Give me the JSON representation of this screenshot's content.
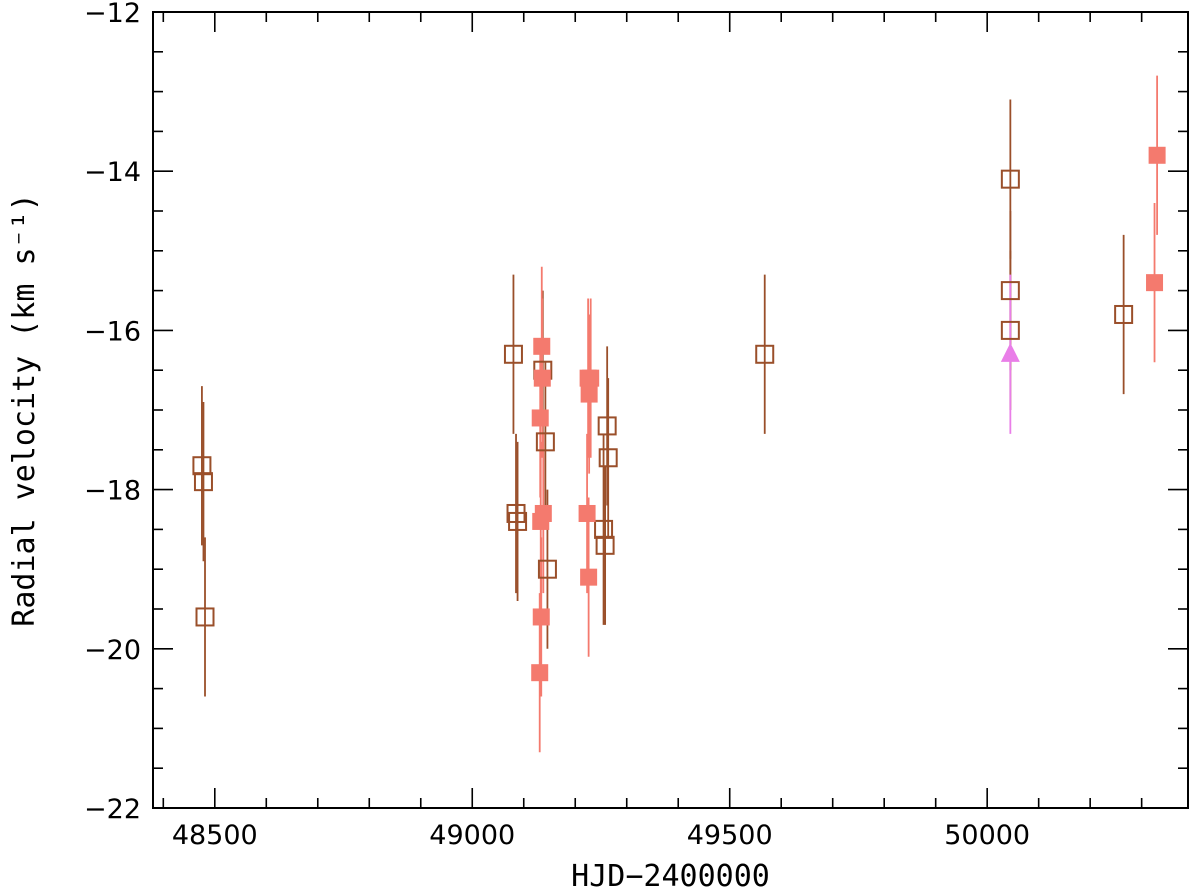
{
  "chart_data": {
    "type": "scatter",
    "xlabel": "HJD−2400000",
    "ylabel": "Radial velocity (km s⁻¹)",
    "xlim": [
      48380,
      50390
    ],
    "ylim": [
      -22,
      -12
    ],
    "x_ticks": [
      48500,
      49000,
      49500,
      50000
    ],
    "x_tick_labels": [
      "48500",
      "49000",
      "49500",
      "50000"
    ],
    "y_ticks": [
      -22,
      -20,
      -18,
      -16,
      -14,
      -12
    ],
    "y_tick_labels": [
      "−22",
      "−20",
      "−18",
      "−16",
      "−14",
      "−12"
    ],
    "grid": false,
    "legend": "none",
    "series": [
      {
        "marker": "open-square",
        "color": "#9a4f2a",
        "points": [
          {
            "x": 48475,
            "y": -17.7,
            "err": 1.0
          },
          {
            "x": 48478,
            "y": -17.9,
            "err": 1.0
          },
          {
            "x": 48481,
            "y": -19.6,
            "err": 1.0
          },
          {
            "x": 49080,
            "y": -16.3,
            "err": 1.0
          },
          {
            "x": 49085,
            "y": -18.3,
            "err": 1.0
          },
          {
            "x": 49088,
            "y": -18.4,
            "err": 1.0
          },
          {
            "x": 49137,
            "y": -16.5,
            "err": 1.0
          },
          {
            "x": 49142,
            "y": -17.4,
            "err": 1.0
          },
          {
            "x": 49146,
            "y": -19.0,
            "err": 1.0
          },
          {
            "x": 49255,
            "y": -18.5,
            "err": 1.2
          },
          {
            "x": 49258,
            "y": -18.7,
            "err": 1.0
          },
          {
            "x": 49262,
            "y": -17.2,
            "err": 1.0
          },
          {
            "x": 49264,
            "y": -17.6,
            "err": 1.0
          },
          {
            "x": 49568,
            "y": -16.3,
            "err": 1.0
          },
          {
            "x": 50045,
            "y": -14.1,
            "err": 1.0
          },
          {
            "x": 50045,
            "y": -15.5,
            "err": 1.0
          },
          {
            "x": 50045,
            "y": -16.0,
            "err": 1.0
          },
          {
            "x": 50265,
            "y": -15.8,
            "err": 1.0
          }
        ]
      },
      {
        "marker": "filled-square",
        "color": "#f47a6e",
        "points": [
          {
            "x": 49135,
            "y": -16.2,
            "err": 1.0
          },
          {
            "x": 49136,
            "y": -16.6,
            "err": 1.0
          },
          {
            "x": 49132,
            "y": -17.1,
            "err": 1.0
          },
          {
            "x": 49138,
            "y": -18.3,
            "err": 1.0
          },
          {
            "x": 49133,
            "y": -18.4,
            "err": 1.0
          },
          {
            "x": 49134,
            "y": -19.6,
            "err": 1.0
          },
          {
            "x": 49131,
            "y": -20.3,
            "err": 1.0
          },
          {
            "x": 49225,
            "y": -16.6,
            "err": 1.0
          },
          {
            "x": 49230,
            "y": -16.6,
            "err": 1.0
          },
          {
            "x": 49227,
            "y": -16.8,
            "err": 1.0
          },
          {
            "x": 49223,
            "y": -18.3,
            "err": 1.0
          },
          {
            "x": 49226,
            "y": -19.1,
            "err": 1.0
          },
          {
            "x": 50330,
            "y": -13.8,
            "err": 1.0
          },
          {
            "x": 50325,
            "y": -15.4,
            "err": 1.0
          }
        ]
      },
      {
        "marker": "filled-triangle",
        "color": "#e97ee8",
        "points": [
          {
            "x": 50045,
            "y": -16.3,
            "err": 1.0
          }
        ]
      }
    ]
  }
}
